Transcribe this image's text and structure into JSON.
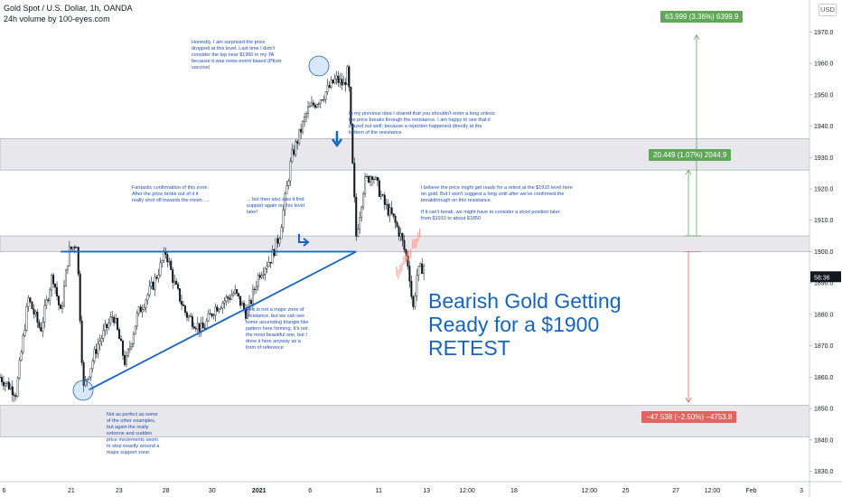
{
  "header": {
    "title": "Gold Spot / U.S. Dollar, 1h, OANDA",
    "subtitle": "24h volume by 100-eyes.com"
  },
  "currency_button": "USD",
  "chart_data": {
    "type": "candlestick",
    "symbol": "Gold Spot / U.S. Dollar, 1h, OANDA",
    "ylim": [
      1827,
      1975
    ],
    "y_ticks": [
      1830,
      1840,
      1850,
      1860,
      1870,
      1880,
      1890,
      1900,
      1910,
      1920,
      1930,
      1940,
      1950,
      1960,
      1970
    ],
    "x_ticks": [
      "6",
      "21",
      "23",
      "28",
      "30",
      "2021",
      "6",
      "11",
      "13",
      "12:00",
      "18",
      "12:00",
      "25",
      "27",
      "12:00",
      "Feb",
      "3"
    ],
    "current_price_label": "58:36",
    "price_path": [
      [
        0,
        1860
      ],
      [
        0.02,
        1855
      ],
      [
        0.035,
        1885
      ],
      [
        0.05,
        1875
      ],
      [
        0.065,
        1893
      ],
      [
        0.075,
        1880
      ],
      [
        0.085,
        1900
      ],
      [
        0.095,
        1903
      ],
      [
        0.103,
        1856
      ],
      [
        0.12,
        1870
      ],
      [
        0.14,
        1880
      ],
      [
        0.155,
        1864
      ],
      [
        0.17,
        1880
      ],
      [
        0.19,
        1890
      ],
      [
        0.205,
        1900
      ],
      [
        0.215,
        1890
      ],
      [
        0.23,
        1880
      ],
      [
        0.25,
        1875
      ],
      [
        0.265,
        1882
      ],
      [
        0.29,
        1887
      ],
      [
        0.305,
        1880
      ],
      [
        0.32,
        1893
      ],
      [
        0.335,
        1898
      ],
      [
        0.345,
        1905
      ],
      [
        0.36,
        1930
      ],
      [
        0.38,
        1945
      ],
      [
        0.4,
        1950
      ],
      [
        0.415,
        1955
      ],
      [
        0.425,
        1953
      ],
      [
        0.43,
        1958
      ],
      [
        0.435,
        1930
      ],
      [
        0.44,
        1905
      ],
      [
        0.45,
        1922
      ],
      [
        0.46,
        1925
      ],
      [
        0.475,
        1915
      ],
      [
        0.485,
        1911
      ],
      [
        0.495,
        1905
      ],
      [
        0.505,
        1895
      ],
      [
        0.51,
        1881
      ],
      [
        0.515,
        1893
      ],
      [
        0.525,
        1896
      ]
    ],
    "projection": {
      "from": [
        0.49,
        1893
      ],
      "to": [
        0.52,
        1906
      ]
    },
    "zones": [
      {
        "low": 1926,
        "high": 1936
      },
      {
        "low": 1900,
        "high": 1905
      },
      {
        "low": 1841,
        "high": 1851
      }
    ],
    "trendlines": [
      {
        "from": [
          0.075,
          1900
        ],
        "to": [
          0.44,
          1900
        ]
      },
      {
        "from": [
          0.11,
          1856
        ],
        "to": [
          0.44,
          1900
        ]
      }
    ],
    "measures": [
      {
        "label": "63.999 (3.36%) 6399.9",
        "color": "#5fa857",
        "from": 1905,
        "to": 1969
      },
      {
        "label": "20.449 (1.07%) 2044.9",
        "color": "#5fa857",
        "from": 1905,
        "to": 1926
      },
      {
        "label": "−47.538 (−2.50%) −4753.8",
        "color": "#e2635f",
        "from": 1900,
        "to": 1852
      }
    ]
  },
  "annotations": {
    "surprised": "Honestly, I am surprised the price dropped at this level. Last time I didn't consider the top near $1950 in my TA because it was news-event based (Pfizer vaccine)",
    "previous_idea": "In my previous idea I shared that you shouldn't enter a long unless the price breaks through the resistance. I am happy to see that it played out well; because a rejection happened directly at the bottom of the resistance",
    "fantastic": "Fantastic confirmation of this zone. After the price broke out of it it really shot off towards the moon ....",
    "but_then": "... but then also saw it find support again on this level later!",
    "believe": "I believe the price might get ready for a retest at the $1910 level here on gold. But I won't suggest a long until after we've confirmed the breakthrough on this resistance.",
    "if_cant_break": "If it can't break, we might have to consider a short position later. from $1910 to about $1850",
    "not_major": "This is not a major zone of resistance, but we can see some ascending triangle like pattern here forming. It's not the most beautiful one, but I drew it here anyway as a form of reference",
    "not_as_perfect": "Not as perfect as some of the other examples, but again the really extreme and sudden price movements seem to stop exactly around a major support zone."
  },
  "headline": {
    "line1": "Bearish Gold Getting",
    "line2": "Ready for a $1900",
    "line3": "RETEST"
  },
  "colors": {
    "candles": "#131722",
    "annotation_text": "#1e50b4",
    "trendline": "#1565c0",
    "headline": "#1565c0",
    "zone_fill": "#e8e8ec",
    "projection": "#ef9a8a",
    "measure_up": "#5fa857",
    "measure_down": "#e2635f"
  }
}
